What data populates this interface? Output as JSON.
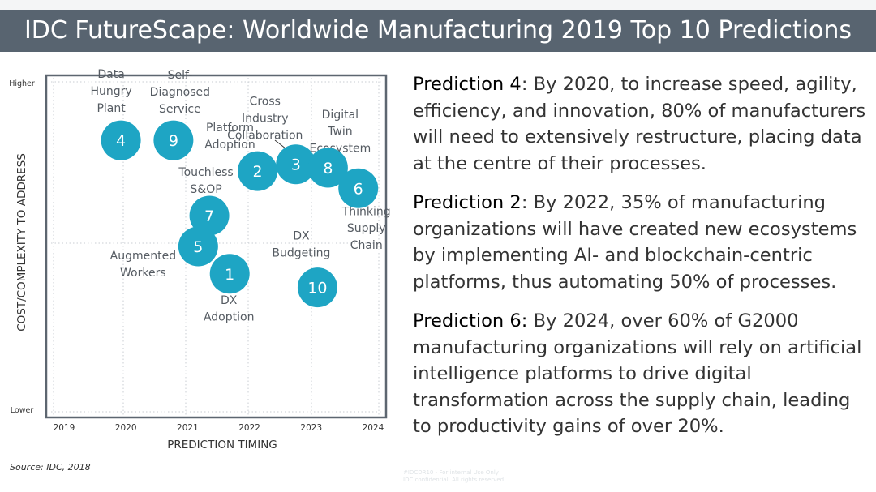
{
  "header": {
    "title": "IDC FutureScape: Worldwide Manufacturing 2019 Top 10 Predictions"
  },
  "chart_data": {
    "type": "scatter",
    "title": "",
    "xlabel": "PREDICTION TIMING",
    "ylabel": "COST/COMPLEXITY TO ADDRESS",
    "x_ticks": [
      "2019",
      "2020",
      "2021",
      "2022",
      "2023",
      "2024"
    ],
    "xlim": [
      2019,
      2024
    ],
    "y_tick_high": "Higher",
    "y_tick_low": "Lower",
    "ylim": [
      0,
      10
    ],
    "grid": true,
    "accent": "#1ea5c4",
    "points": [
      {
        "id": "4",
        "label": "Data Hungry Plant",
        "label_lines": [
          "Data",
          "Hungry",
          "Plant"
        ],
        "x": 2019.92,
        "y": 8.1
      },
      {
        "id": "9",
        "label": "Self-Diagnosed Service",
        "label_lines": [
          "Self-",
          "Diagnosed",
          "Service"
        ],
        "x": 2020.77,
        "y": 8.1
      },
      {
        "id": "2",
        "label": "Platform Adoption",
        "label_lines": [
          "Platform",
          "Adoption"
        ],
        "x": 2022.13,
        "y": 7.2
      },
      {
        "id": "3",
        "label": "Cross Industry Collaboration",
        "label_lines": [
          "Cross",
          "Industry",
          "Collaboration"
        ],
        "x": 2022.75,
        "y": 7.4
      },
      {
        "id": "8",
        "label": "Digital Twin Ecosystem",
        "label_lines": [
          "Digital",
          "Twin",
          "Ecosystem"
        ],
        "x": 2023.27,
        "y": 7.3
      },
      {
        "id": "6",
        "label": "Thinking Supply Chain",
        "label_lines": [
          "Thinking",
          "Supply",
          "Chain"
        ],
        "x": 2023.76,
        "y": 6.7
      },
      {
        "id": "7",
        "label": "Touchless S&OP",
        "label_lines": [
          "Touchless",
          "S&OP"
        ],
        "x": 2021.35,
        "y": 5.9
      },
      {
        "id": "5",
        "label": "Augmented Workers",
        "label_lines": [
          "Augmented",
          "Workers"
        ],
        "x": 2021.17,
        "y": 5.0
      },
      {
        "id": "1",
        "label": "DX Adoption",
        "label_lines": [
          "DX",
          "Adoption"
        ],
        "x": 2021.68,
        "y": 4.2
      },
      {
        "id": "10",
        "label": "DX Budgeting",
        "label_lines": [
          "DX",
          "Budgeting"
        ],
        "x": 2023.1,
        "y": 3.8
      }
    ]
  },
  "predictions": [
    {
      "label": "Prediction 4",
      "text": ": By 2020, to increase speed, agility, efficiency, and innovation, 80% of manufacturers will need to extensively restructure, placing data at the centre of their processes."
    },
    {
      "label": "Prediction 2",
      "text": ": By 2022, 35% of manufacturing organizations will have created new ecosystems by implementing AI- and blockchain-centric platforms, thus automating 50% of processes."
    },
    {
      "label": "Prediction 6:",
      "text": " By 2024, over 60% of G2000 manufacturing organizations will rely on artificial intelligence platforms to drive digital transformation across the supply chain, leading to productivity gains of over 20%."
    }
  ],
  "source": "Source: IDC, 2018",
  "watermark": [
    "#IDCDR10 - For internal Use Only",
    "IDC confidential. All rights reserved"
  ]
}
